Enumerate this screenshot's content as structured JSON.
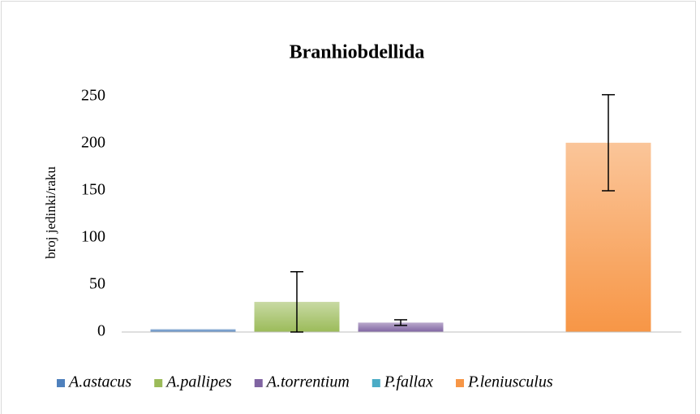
{
  "chart_data": {
    "type": "bar",
    "title": "Branhiobdellida",
    "y_label": "broj jedinki/raku",
    "series": [
      {
        "name": "A.astacus",
        "color": "#4f81bd",
        "values": [
          3
        ],
        "errors": [
          null
        ]
      },
      {
        "name": "A.pallipes",
        "color": "#9bbb59",
        "values": [
          32
        ],
        "errors": [
          32
        ]
      },
      {
        "name": "A.torrentium",
        "color": "#8064a2",
        "values": [
          10
        ],
        "errors": [
          3
        ]
      },
      {
        "name": "P.fallax",
        "color": "#4bacc6",
        "values": [
          0
        ],
        "errors": [
          null
        ]
      },
      {
        "name": "P.leniusculus",
        "color": "#f79646",
        "values": [
          201
        ],
        "errors": [
          51
        ]
      }
    ],
    "ylim": [
      0,
      250
    ],
    "yticks": [
      0,
      50,
      100,
      150,
      200,
      250
    ],
    "grid": false,
    "legend": "bottom"
  }
}
